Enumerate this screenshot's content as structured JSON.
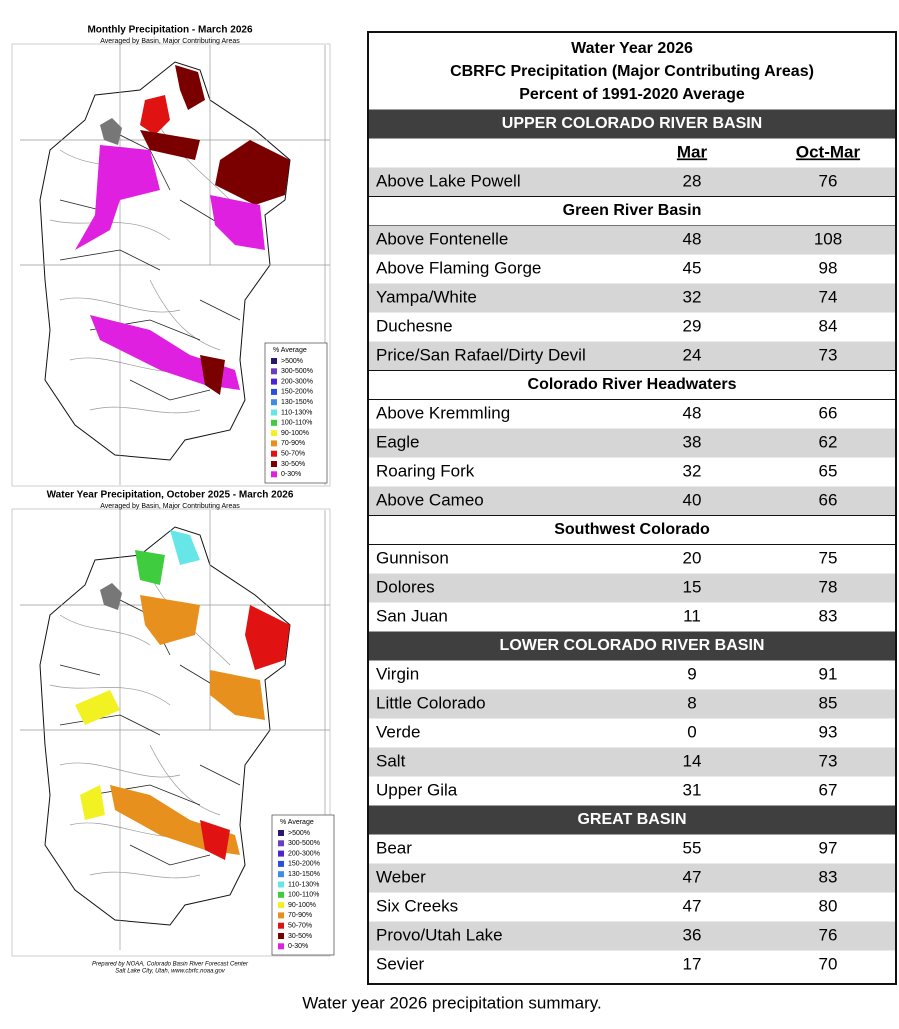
{
  "maps": [
    {
      "title": "Monthly Precipitation - March 2026",
      "subtitle": "Averaged by Basin, Major Contributing Areas"
    },
    {
      "title": "Water Year Precipitation, October 2025 - March 2026",
      "subtitle": "Averaged by Basin, Major Contributing Areas"
    }
  ],
  "legend": {
    "title": "% Average",
    "items": [
      {
        "label": ">500%",
        "color": "#2a1670"
      },
      {
        "label": "300-500%",
        "color": "#6b3cc4"
      },
      {
        "label": "200-300%",
        "color": "#4a24d6"
      },
      {
        "label": "150-200%",
        "color": "#2a4fe0"
      },
      {
        "label": "130-150%",
        "color": "#3d8de6"
      },
      {
        "label": "110-130%",
        "color": "#66e6e6"
      },
      {
        "label": "100-110%",
        "color": "#3fcc3f"
      },
      {
        "label": "90-100%",
        "color": "#f2f222"
      },
      {
        "label": "70-90%",
        "color": "#e8901e"
      },
      {
        "label": "50-70%",
        "color": "#e01212"
      },
      {
        "label": "30-50%",
        "color": "#7a0000"
      },
      {
        "label": "0-30%",
        "color": "#e020e0"
      }
    ]
  },
  "credit": [
    "Prepared by NOAA, Colorado Basin River Forecast Center",
    "Salt Lake City, Utah, www.cbrfc.noaa.gov"
  ],
  "table": {
    "title": [
      "Water Year 2026",
      "CBRFC Precipitation (Major Contributing Areas)",
      "Percent of 1991-2020 Average"
    ],
    "columns": [
      "Mar",
      "Oct-Mar"
    ],
    "basins": [
      {
        "name": "UPPER COLORADO RIVER BASIN",
        "rows": [
          [
            "Above Lake Powell",
            28,
            76
          ]
        ],
        "groups": [
          {
            "name": "Green River Basin",
            "rows": [
              [
                "Above Fontenelle",
                48,
                108
              ],
              [
                "Above Flaming Gorge",
                45,
                98
              ],
              [
                "Yampa/White",
                32,
                74
              ],
              [
                "Duchesne",
                29,
                84
              ],
              [
                "Price/San Rafael/Dirty Devil",
                24,
                73
              ]
            ]
          },
          {
            "name": "Colorado River Headwaters",
            "rows": [
              [
                "Above Kremmling",
                48,
                66
              ],
              [
                "Eagle",
                38,
                62
              ],
              [
                "Roaring Fork",
                32,
                65
              ],
              [
                "Above Cameo",
                40,
                66
              ]
            ]
          },
          {
            "name": "Southwest Colorado",
            "rows": [
              [
                "Gunnison",
                20,
                75
              ],
              [
                "Dolores",
                15,
                78
              ],
              [
                "San Juan",
                11,
                83
              ]
            ]
          }
        ]
      },
      {
        "name": "LOWER COLORADO RIVER BASIN",
        "rows": [
          [
            "Virgin",
            9,
            91
          ],
          [
            "Little Colorado",
            8,
            85
          ],
          [
            "Verde",
            0,
            93
          ],
          [
            "Salt",
            14,
            73
          ],
          [
            "Upper Gila",
            31,
            67
          ]
        ]
      },
      {
        "name": "GREAT BASIN",
        "rows": [
          [
            "Bear",
            55,
            97
          ],
          [
            "Weber",
            47,
            83
          ],
          [
            "Six Creeks",
            47,
            80
          ],
          [
            "Provo/Utah Lake",
            36,
            76
          ],
          [
            "Sevier",
            17,
            70
          ]
        ]
      }
    ]
  },
  "caption": "Water year 2026 precipitation summary."
}
